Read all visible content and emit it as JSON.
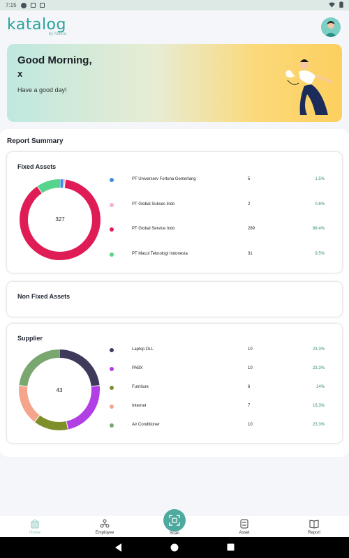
{
  "status_bar": {
    "time": "7:15"
  },
  "brand": {
    "name": "katalog",
    "sub": "by Moora"
  },
  "greeting": {
    "title": "Good Morning,",
    "name": "x",
    "subtitle": "Have a good day!"
  },
  "report": {
    "title": "Report Summary",
    "fixed_assets": {
      "title": "Fixed Assets",
      "total": "327",
      "items": [
        {
          "name": "PT Universerv Fortuna Gemerlang",
          "value": "5",
          "percent": "1.5%",
          "color": "#3d8fe0"
        },
        {
          "name": "PT Global Sukses Indo",
          "value": "2",
          "percent": "0.6%",
          "color": "#f3b1cc"
        },
        {
          "name": "PT Global Service Indo",
          "value": "289",
          "percent": "88.4%",
          "color": "#e01c56"
        },
        {
          "name": "PT Macul Teknologi Indonesia",
          "value": "31",
          "percent": "9.5%",
          "color": "#56d38c"
        }
      ]
    },
    "non_fixed_assets": {
      "title": "Non Fixed Assets"
    },
    "supplier": {
      "title": "Supplier",
      "total": "43",
      "items": [
        {
          "name": "Laptop DLL",
          "value": "10",
          "percent": "23.3%",
          "color": "#3f3a5b"
        },
        {
          "name": "PABX",
          "value": "10",
          "percent": "23.3%",
          "color": "#b23ee6"
        },
        {
          "name": "Furniture",
          "value": "6",
          "percent": "14%",
          "color": "#7e8f2a"
        },
        {
          "name": "Internet",
          "value": "7",
          "percent": "16.3%",
          "color": "#f4a58b"
        },
        {
          "name": "Air Conditioner",
          "value": "10",
          "percent": "23.3%",
          "color": "#7aa66f"
        }
      ]
    }
  },
  "nav": {
    "home": "Home",
    "employee": "Employee",
    "scan": "Scan",
    "asset": "Asset",
    "report": "Report"
  },
  "chart_data": [
    {
      "type": "pie",
      "title": "Fixed Assets",
      "categories": [
        "PT Universerv Fortuna Gemerlang",
        "PT Global Sukses Indo",
        "PT Global Service Indo",
        "PT Macul Teknologi Indonesia"
      ],
      "values": [
        5,
        2,
        289,
        31
      ]
    },
    {
      "type": "pie",
      "title": "Supplier",
      "categories": [
        "Laptop DLL",
        "PABX",
        "Furniture",
        "Internet",
        "Air Conditioner"
      ],
      "values": [
        10,
        10,
        6,
        7,
        10
      ]
    }
  ]
}
